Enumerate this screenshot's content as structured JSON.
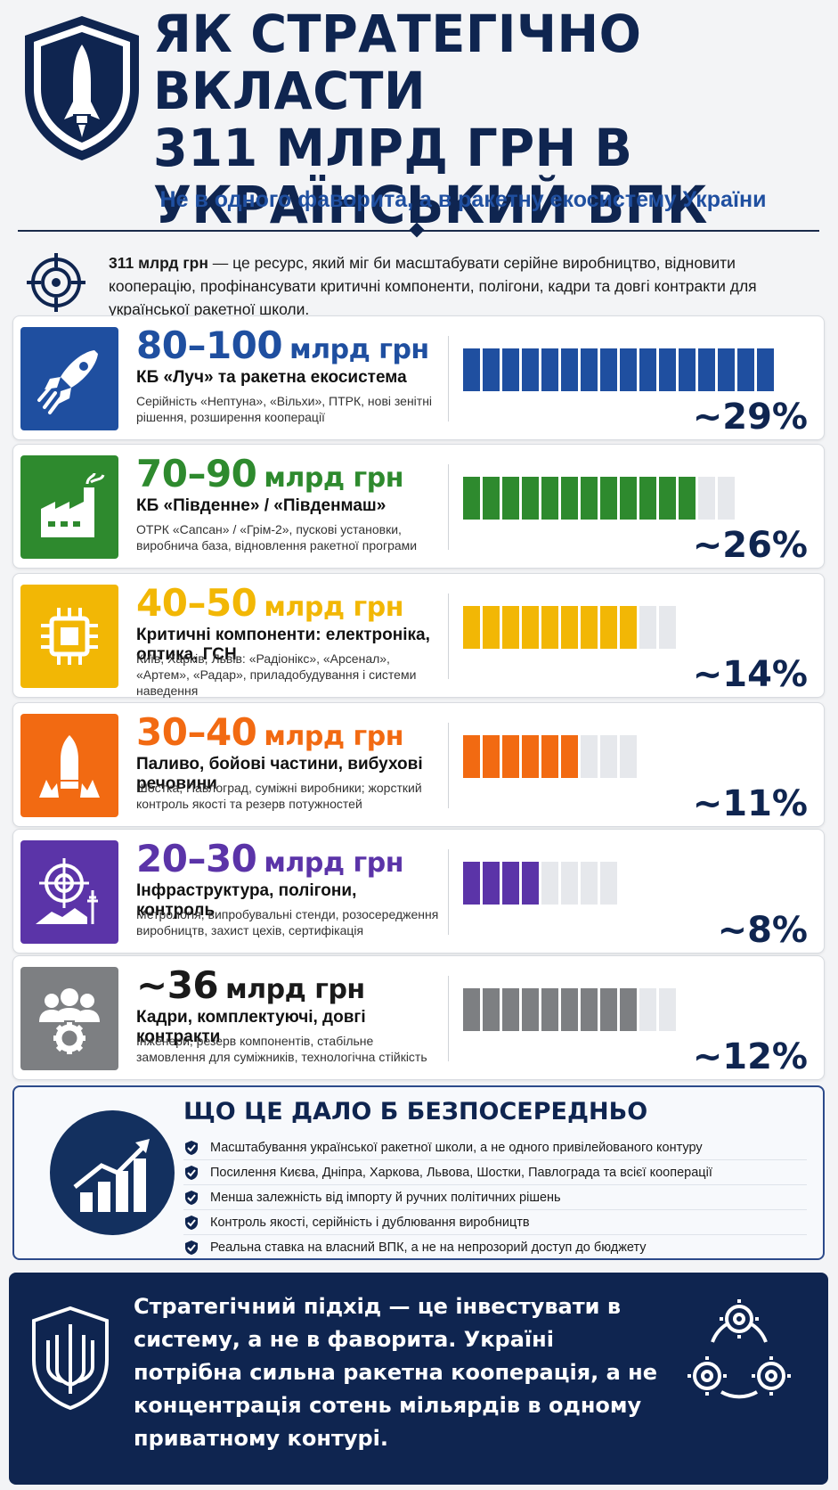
{
  "header": {
    "title_lines": [
      "ЯК СТРАТЕГІЧНО ВКЛАСТИ",
      "311 МЛРД ГРН В",
      "УКРАЇНСЬКИЙ ВПК"
    ],
    "subtitle": "Не в одного фаворита, а в ракетну екосистему України"
  },
  "intro": {
    "bold": "311 млрд грн",
    "text": " — це ресурс, який міг би масштабувати серійне виробництво, відновити кооперацію, профінансувати критичні компоненти, полігони, кадри та довгі контракти для української ракетної школи."
  },
  "cards": [
    {
      "icon": "rocket-icon",
      "color": "#1f4fa0",
      "amount": "80–100",
      "unit": "млрд грн",
      "name": "КБ «Луч» та ракетна екосистема",
      "desc": "Серійність «Нептуна», «Вільхи», ПТРК, нові зенітні рішення, розширення кооперації",
      "filled": 16,
      "total": 16,
      "percent": "~29%",
      "share": 0.29
    },
    {
      "icon": "factory-icon",
      "color": "#2e8a2e",
      "amount": "70–90",
      "unit": "млрд грн",
      "name": "КБ «Південне» / «Південмаш»",
      "desc": "ОТРК «Сапсан» / «Грім-2», пускові установки, виробнича база, відновлення ракетної програми",
      "filled": 12,
      "total": 14,
      "percent": "~26%",
      "share": 0.26
    },
    {
      "icon": "chip-icon",
      "color": "#f2b705",
      "amount": "40–50",
      "unit": "млрд грн",
      "name": "Критичні компоненти: електроніка, оптика, ГСН",
      "desc": "Київ, Харків, Львів: «Радіонікс», «Арсенал», «Артем», «Радар», приладобудування і системи наведення",
      "filled": 9,
      "total": 11,
      "percent": "~14%",
      "share": 0.14
    },
    {
      "icon": "explosion-icon",
      "color": "#f26a12",
      "amount": "30–40",
      "unit": "млрд грн",
      "name": "Паливо, бойові частини, вибухові речовини",
      "desc": "Шостка, Павлоград, суміжні виробники; жорсткий контроль якості та резерв потужностей",
      "filled": 6,
      "total": 9,
      "percent": "~11%",
      "share": 0.11
    },
    {
      "icon": "target-range-icon",
      "color": "#5b34a8",
      "amount": "20–30",
      "unit": "млрд грн",
      "name": "Інфраструктура, полігони, контроль",
      "desc": "Метрологія, випробувальні стенди, розосередження виробництв, захист цехів, сертифікація",
      "filled": 4,
      "total": 8,
      "percent": "~8%",
      "share": 0.08
    },
    {
      "icon": "people-gear-icon",
      "color": "#7d7f82",
      "amount": "~36",
      "unit": "млрд грн",
      "name": "Кадри, комплектуючі, довгі контракти",
      "desc": "Інженери, резерв компонентів, стабільне замовлення для суміжників, технологічна стійкість",
      "filled": 9,
      "total": 11,
      "percent": "~12%",
      "share": 0.12
    }
  ],
  "results": {
    "title": "ЩО ЦЕ ДАЛО Б БЕЗПОСЕРЕДНЬО",
    "items": [
      "Масштабування української ракетної школи, а не одного привілейованого контуру",
      "Посилення Києва, Дніпра, Харкова, Львова, Шостки, Павлограда та всієї кооперації",
      "Менша залежність від імпорту й ручних політичних рішень",
      "Контроль якості, серійність і дублювання виробництв",
      "Реальна ставка на власний ВПК, а не на непрозорий доступ до бюджету"
    ]
  },
  "footer": {
    "text": "Стратегічний підхід — це інвестувати в систему, а не в фаворита. Україні потрібна сильна ракетна кооперація, а не концентрація сотень мільярдів в одному приватному контурі."
  },
  "colors": {
    "navy": "#0f2550",
    "blue": "#1f4fa0",
    "empty_bar": "#e6e8ec"
  }
}
